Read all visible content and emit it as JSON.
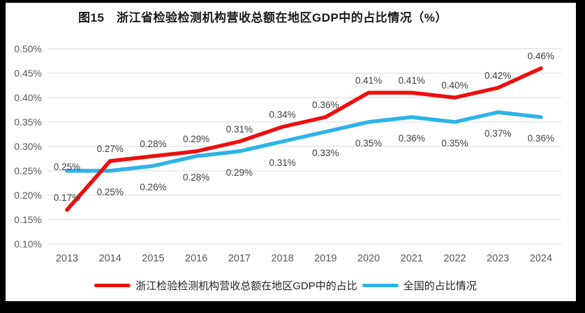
{
  "chart_data": {
    "type": "line",
    "title": "图15　浙江省检验检测机构营收总额在地区GDP中的占比情况（%）",
    "categories": [
      "2013",
      "2014",
      "2015",
      "2016",
      "2017",
      "2018",
      "2019",
      "2020",
      "2021",
      "2022",
      "2023",
      "2024"
    ],
    "series": [
      {
        "name": "浙江检验检测机构营收总额在地区GDP中的占比",
        "color": "#ee0f0f",
        "values": [
          0.17,
          0.27,
          0.28,
          0.29,
          0.31,
          0.34,
          0.36,
          0.41,
          0.41,
          0.4,
          0.42,
          0.46
        ],
        "labels": [
          "0.17%",
          "0.27%",
          "0.28%",
          "0.29%",
          "0.31%",
          "0.34%",
          "0.36%",
          "0.41%",
          "0.41%",
          "0.40%",
          "0.42%",
          "0.46%"
        ]
      },
      {
        "name": "全国的占比情况",
        "color": "#2db3e8",
        "values": [
          0.25,
          0.25,
          0.26,
          0.28,
          0.29,
          0.31,
          0.33,
          0.35,
          0.36,
          0.35,
          0.37,
          0.36
        ],
        "labels": [
          "0.25%",
          "0.25%",
          "0.26%",
          "0.28%",
          "0.29%",
          "0.31%",
          "0.33%",
          "0.35%",
          "0.36%",
          "0.35%",
          "0.37%",
          "0.36%"
        ]
      }
    ],
    "y_axis": {
      "min": 0.1,
      "max": 0.5,
      "step": 0.05,
      "tick_labels": [
        "0.50%",
        "0.45%",
        "0.40%",
        "0.35%",
        "0.30%",
        "0.25%",
        "0.20%",
        "0.15%",
        "0.10%"
      ]
    },
    "xlabel": "",
    "ylabel": "",
    "ylim": [
      0.1,
      0.5
    ],
    "grid": true,
    "legend_position": "bottom"
  },
  "colors": {
    "gridline": "#d9d9d9",
    "tick_text": "#595959",
    "data_label_text": "#404040",
    "frame_border": "#000000",
    "background": "#ffffff"
  }
}
